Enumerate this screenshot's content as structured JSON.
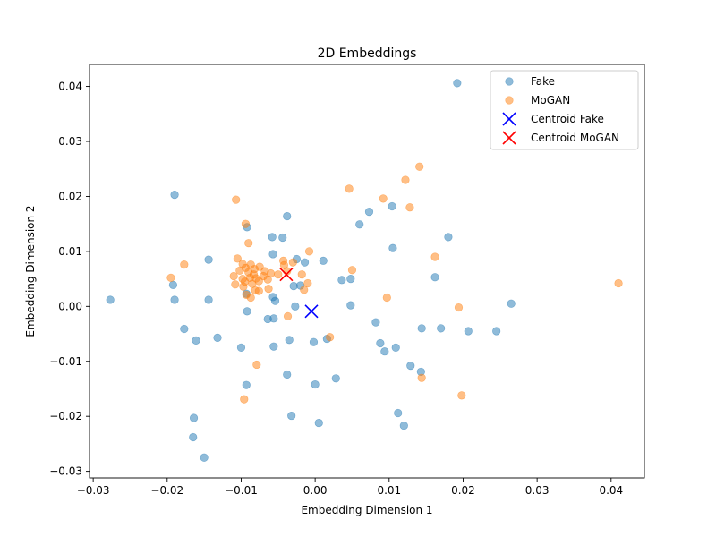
{
  "chart_data": {
    "type": "scatter",
    "title": "2D Embeddings",
    "xlabel": "Embedding Dimension 1",
    "ylabel": "Embedding Dimension 2",
    "xlim": [
      -0.0305,
      0.0445
    ],
    "ylim": [
      -0.0312,
      0.044
    ],
    "xticks": [
      -0.03,
      -0.02,
      -0.01,
      0.0,
      0.01,
      0.02,
      0.03,
      0.04
    ],
    "xtick_labels": [
      "−0.03",
      "−0.02",
      "−0.01",
      "0.00",
      "0.01",
      "0.02",
      "0.03",
      "0.04"
    ],
    "yticks": [
      -0.03,
      -0.02,
      -0.01,
      0.0,
      0.01,
      0.02,
      0.03,
      0.04
    ],
    "ytick_labels": [
      "−0.03",
      "−0.02",
      "−0.01",
      "0.00",
      "0.01",
      "0.02",
      "0.03",
      "0.04"
    ],
    "grid": false,
    "legend_position": "top-right",
    "series": [
      {
        "name": "Fake",
        "color": "#1f77b4",
        "marker": "circle",
        "alpha": 0.5,
        "points": [
          [
            0.0192,
            0.0406
          ],
          [
            -0.019,
            0.0203
          ],
          [
            -0.0038,
            0.0164
          ],
          [
            0.0073,
            0.0172
          ],
          [
            0.0104,
            0.0182
          ],
          [
            -0.0092,
            0.0144
          ],
          [
            0.006,
            0.0149
          ],
          [
            -0.0058,
            0.0126
          ],
          [
            -0.0044,
            0.0125
          ],
          [
            0.018,
            0.0126
          ],
          [
            0.0105,
            0.0106
          ],
          [
            -0.0144,
            0.0085
          ],
          [
            -0.0057,
            0.0095
          ],
          [
            -0.0025,
            0.0086
          ],
          [
            -0.0014,
            0.008
          ],
          [
            0.0011,
            0.0083
          ],
          [
            0.0036,
            0.0048
          ],
          [
            0.0048,
            0.005
          ],
          [
            0.0162,
            0.0053
          ],
          [
            -0.0192,
            0.0039
          ],
          [
            -0.0029,
            0.0037
          ],
          [
            -0.002,
            0.0038
          ],
          [
            -0.0277,
            0.0012
          ],
          [
            -0.019,
            0.0012
          ],
          [
            -0.0144,
            0.0012
          ],
          [
            -0.0093,
            0.0023
          ],
          [
            -0.0057,
            0.0017
          ],
          [
            -0.0054,
            0.001
          ],
          [
            -0.0027,
            0.0
          ],
          [
            0.0048,
            0.0002
          ],
          [
            0.0265,
            0.0005
          ],
          [
            -0.0092,
            -0.0009
          ],
          [
            -0.0064,
            -0.0023
          ],
          [
            -0.0056,
            -0.0022
          ],
          [
            -0.0177,
            -0.0041
          ],
          [
            0.0082,
            -0.0029
          ],
          [
            0.0144,
            -0.004
          ],
          [
            0.017,
            -0.004
          ],
          [
            0.0207,
            -0.0045
          ],
          [
            0.0245,
            -0.0045
          ],
          [
            -0.0132,
            -0.0057
          ],
          [
            -0.0161,
            -0.0062
          ],
          [
            -0.0035,
            -0.0061
          ],
          [
            -0.0002,
            -0.0065
          ],
          [
            0.0016,
            -0.0059
          ],
          [
            -0.01,
            -0.0075
          ],
          [
            -0.0056,
            -0.0073
          ],
          [
            0.0088,
            -0.0067
          ],
          [
            0.0094,
            -0.0082
          ],
          [
            0.0109,
            -0.0075
          ],
          [
            0.0129,
            -0.0108
          ],
          [
            0.0143,
            -0.0119
          ],
          [
            -0.0038,
            -0.0124
          ],
          [
            0.0028,
            -0.0131
          ],
          [
            -0.0093,
            -0.0143
          ],
          [
            0.0,
            -0.0142
          ],
          [
            -0.0164,
            -0.0203
          ],
          [
            -0.0032,
            -0.0199
          ],
          [
            0.0112,
            -0.0194
          ],
          [
            0.0005,
            -0.0212
          ],
          [
            0.012,
            -0.0217
          ],
          [
            -0.0165,
            -0.0238
          ],
          [
            -0.015,
            -0.0275
          ]
        ]
      },
      {
        "name": "MoGAN",
        "color": "#ff7f0e",
        "marker": "circle",
        "alpha": 0.5,
        "points": [
          [
            0.0141,
            0.0254
          ],
          [
            0.0122,
            0.023
          ],
          [
            0.0046,
            0.0214
          ],
          [
            0.0092,
            0.0196
          ],
          [
            0.0128,
            0.018
          ],
          [
            -0.0107,
            0.0194
          ],
          [
            -0.0094,
            0.015
          ],
          [
            -0.009,
            0.0115
          ],
          [
            0.0162,
            0.009
          ],
          [
            -0.0008,
            0.01
          ],
          [
            -0.0177,
            0.0076
          ],
          [
            -0.0195,
            0.0052
          ],
          [
            0.005,
            0.0066
          ],
          [
            -0.0105,
            0.0087
          ],
          [
            -0.0098,
            0.0077
          ],
          [
            -0.0094,
            0.007
          ],
          [
            -0.0087,
            0.0076
          ],
          [
            -0.0082,
            0.0068
          ],
          [
            -0.0075,
            0.0072
          ],
          [
            -0.0068,
            0.0064
          ],
          [
            -0.006,
            0.006
          ],
          [
            -0.0043,
            0.0083
          ],
          [
            -0.0042,
            0.0075
          ],
          [
            -0.003,
            0.008
          ],
          [
            -0.0102,
            0.0065
          ],
          [
            -0.009,
            0.0062
          ],
          [
            -0.0083,
            0.0058
          ],
          [
            -0.008,
            0.0051
          ],
          [
            -0.0076,
            0.0046
          ],
          [
            -0.0088,
            0.0052
          ],
          [
            -0.0095,
            0.0045
          ],
          [
            -0.0098,
            0.005
          ],
          [
            -0.011,
            0.0055
          ],
          [
            -0.0108,
            0.004
          ],
          [
            -0.0097,
            0.0036
          ],
          [
            -0.0085,
            0.0041
          ],
          [
            -0.007,
            0.0055
          ],
          [
            -0.0064,
            0.0049
          ],
          [
            -0.005,
            0.0058
          ],
          [
            -0.0038,
            0.0064
          ],
          [
            -0.0018,
            0.0058
          ],
          [
            -0.0015,
            0.003
          ],
          [
            -0.001,
            0.0042
          ],
          [
            -0.0081,
            0.0029
          ],
          [
            -0.0076,
            0.0028
          ],
          [
            -0.0063,
            0.0032
          ],
          [
            -0.0093,
            0.0021
          ],
          [
            -0.0087,
            0.0016
          ],
          [
            -0.0037,
            -0.0018
          ],
          [
            0.0097,
            0.0016
          ],
          [
            0.002,
            -0.0056
          ],
          [
            0.0194,
            -0.0002
          ],
          [
            0.041,
            0.0042
          ],
          [
            -0.0079,
            -0.0106
          ],
          [
            0.0144,
            -0.013
          ],
          [
            -0.0096,
            -0.0169
          ],
          [
            0.0198,
            -0.0162
          ]
        ]
      },
      {
        "name": "Centroid Fake",
        "color": "#0000ff",
        "marker": "x",
        "alpha": 1,
        "points": [
          [
            -0.0005,
            -0.0009
          ]
        ]
      },
      {
        "name": "Centroid MoGAN",
        "color": "#ff0000",
        "marker": "x",
        "alpha": 1,
        "points": [
          [
            -0.0039,
            0.0058
          ]
        ]
      }
    ]
  }
}
